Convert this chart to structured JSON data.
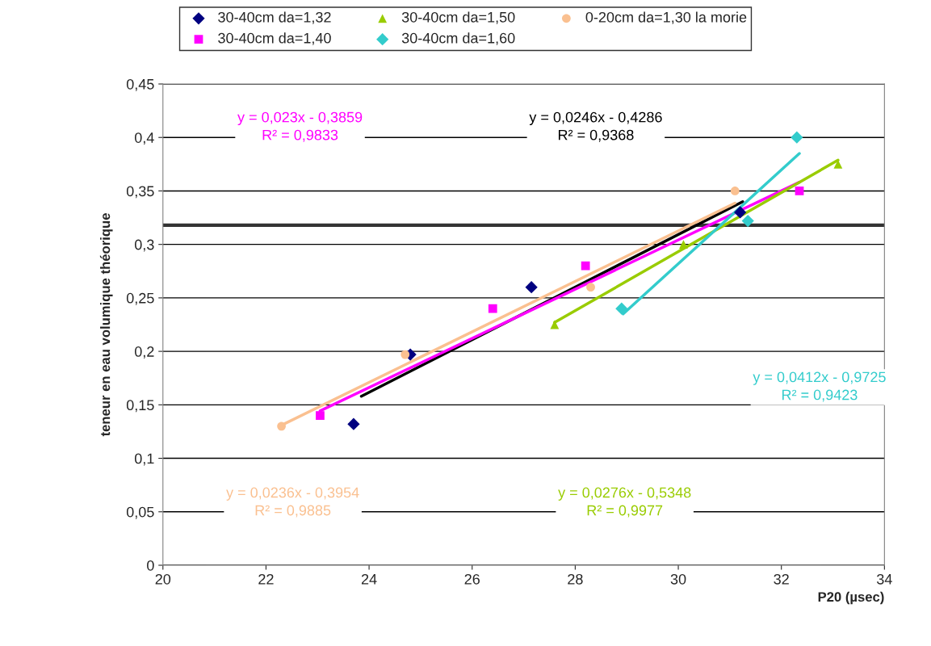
{
  "chart_data": {
    "type": "scatter",
    "xlabel": "P20 (µsec)",
    "ylabel": "teneur en eau volumique théorique",
    "xlim": [
      20,
      34
    ],
    "xticks": [
      20,
      22,
      24,
      26,
      28,
      30,
      32,
      34
    ],
    "ylim": [
      0,
      0.45
    ],
    "yticks": [
      {
        "value": 0,
        "label": "0"
      },
      {
        "value": 0.05,
        "label": "0,05"
      },
      {
        "value": 0.1,
        "label": "0,1"
      },
      {
        "value": 0.15,
        "label": "0,15"
      },
      {
        "value": 0.2,
        "label": "0,2"
      },
      {
        "value": 0.25,
        "label": "0,25"
      },
      {
        "value": 0.3,
        "label": "0,3"
      },
      {
        "value": 0.35,
        "label": "0,35"
      },
      {
        "value": 0.4,
        "label": "0,4"
      },
      {
        "value": 0.45,
        "label": "0,45"
      }
    ],
    "grid": "y",
    "legend": "top",
    "series": [
      {
        "name": "30-40cm da=1,32",
        "color": "#000080",
        "marker": "diamond",
        "x": [
          23.7,
          24.8,
          27.15,
          31.2
        ],
        "values": [
          0.132,
          0.197,
          0.26,
          0.33
        ]
      },
      {
        "name": "30-40cm da=1,40",
        "color": "#ff00ff",
        "marker": "square",
        "x": [
          23.05,
          26.4,
          28.2,
          32.35
        ],
        "values": [
          0.14,
          0.24,
          0.28,
          0.35
        ]
      },
      {
        "name": "30-40cm da=1,50",
        "color": "#99cc00",
        "marker": "triangle",
        "x": [
          27.6,
          30.1,
          33.1
        ],
        "values": [
          0.225,
          0.3,
          0.375
        ]
      },
      {
        "name": "30-40cm da=1,60",
        "color": "#33cccc",
        "marker": "diamond",
        "x": [
          28.9,
          31.35,
          32.3
        ],
        "values": [
          0.24,
          0.322,
          0.4
        ]
      },
      {
        "name": "0-20cm da=1,30 la morie",
        "color": "#fac090",
        "marker": "circle",
        "x": [
          22.3,
          24.7,
          28.3,
          31.1
        ],
        "values": [
          0.13,
          0.197,
          0.26,
          0.35
        ]
      },
      {
        "type": "line",
        "color": "#000000",
        "x": [
          23.85,
          31.25
        ],
        "values": [
          0.158,
          0.34
        ]
      },
      {
        "type": "line",
        "color": "#ff00ff",
        "x": [
          23.05,
          32.35
        ],
        "values": [
          0.1443,
          0.3582
        ]
      },
      {
        "type": "line",
        "color": "#99cc00",
        "x": [
          27.6,
          33.1
        ],
        "values": [
          0.227,
          0.3788
        ]
      },
      {
        "type": "line",
        "color": "#33cccc",
        "x": [
          28.93,
          32.35
        ],
        "values": [
          0.235,
          0.385
        ]
      },
      {
        "type": "line",
        "color": "#fac090",
        "x": [
          22.3,
          31.1
        ],
        "values": [
          0.1309,
          0.3386
        ]
      }
    ],
    "ref_lines": [
      {
        "axis": "y",
        "value": 0.318,
        "color": "#333333"
      }
    ],
    "annotations": [
      "y = 0,0246x - 0,4286\nR² = 0,9368",
      "y = 0,023x - 0,3859\nR² = 0,9833",
      "y = 0,0276x - 0,5348\nR² = 0,9977",
      "y = 0,0412x - 0,9725\nR² = 0,9423",
      "y = 0,0236x - 0,3954\nR² = 0,9885"
    ]
  }
}
